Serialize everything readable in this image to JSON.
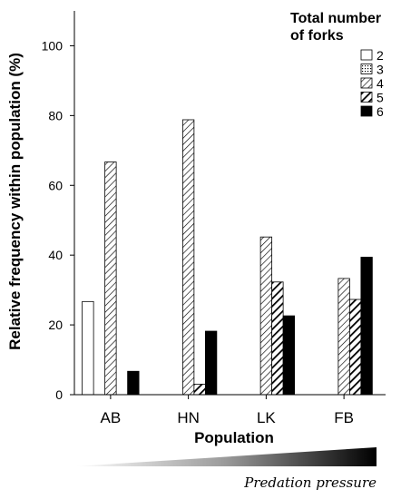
{
  "chart_data": {
    "type": "bar",
    "categories": [
      "AB",
      "HN",
      "LK",
      "FB"
    ],
    "series": [
      {
        "name": "2",
        "values": [
          26.7,
          0,
          0,
          0
        ],
        "pattern": "white"
      },
      {
        "name": "3",
        "values": [
          0,
          0,
          0,
          0
        ],
        "pattern": "dots"
      },
      {
        "name": "4",
        "values": [
          66.7,
          78.8,
          45.2,
          33.3
        ],
        "pattern": "hatch"
      },
      {
        "name": "5",
        "values": [
          0,
          3.0,
          32.3,
          27.3
        ],
        "pattern": "bold-hatch"
      },
      {
        "name": "6",
        "values": [
          6.7,
          18.2,
          22.6,
          39.4
        ],
        "pattern": "black"
      }
    ],
    "xlabel": "Population",
    "ylabel": "Relative frequency within population (%)",
    "ylim": [
      0,
      110
    ],
    "yticks": [
      0,
      20,
      40,
      60,
      80,
      100
    ],
    "grid": false,
    "legend": {
      "title_line1": "Total number",
      "title_line2": "of forks",
      "position": "top-right"
    },
    "gradient_label": "Predation pressure"
  }
}
